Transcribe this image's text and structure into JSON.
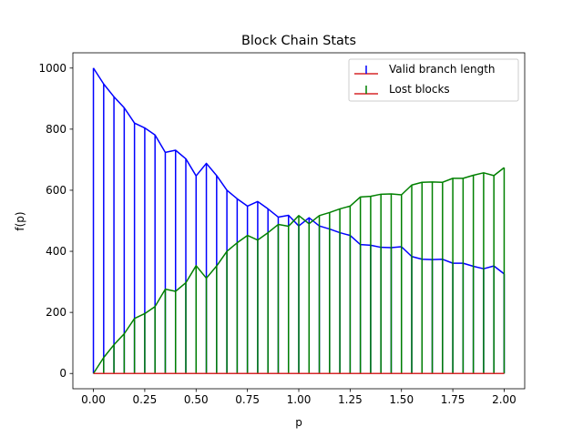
{
  "chart_data": {
    "type": "stem",
    "title": "Block Chain Stats",
    "xlabel": "p",
    "ylabel": "f(p)",
    "xlim": [
      -0.1,
      2.1
    ],
    "ylim": [
      -50,
      1050
    ],
    "xticks": [
      0.0,
      0.25,
      0.5,
      0.75,
      1.0,
      1.25,
      1.5,
      1.75,
      2.0
    ],
    "xtick_labels": [
      "0.00",
      "0.25",
      "0.50",
      "0.75",
      "1.00",
      "1.25",
      "1.50",
      "1.75",
      "2.00"
    ],
    "yticks": [
      0,
      200,
      400,
      600,
      800,
      1000
    ],
    "ytick_labels": [
      "0",
      "200",
      "400",
      "600",
      "800",
      "1000"
    ],
    "grid": false,
    "legend_position": "top-right",
    "baseline_color": "#d62728",
    "x": [
      0.0,
      0.05,
      0.1,
      0.15,
      0.2,
      0.25,
      0.3,
      0.35,
      0.4,
      0.45,
      0.5,
      0.55,
      0.6,
      0.65,
      0.7,
      0.75,
      0.8,
      0.85,
      0.9,
      0.95,
      1.0,
      1.05,
      1.1,
      1.15,
      1.2,
      1.25,
      1.3,
      1.35,
      1.4,
      1.45,
      1.5,
      1.55,
      1.6,
      1.65,
      1.7,
      1.75,
      1.8,
      1.85,
      1.9,
      1.95,
      2.0
    ],
    "series": [
      {
        "name": "Valid branch length",
        "color": "#0000ff",
        "values": [
          1000,
          948,
          906,
          870,
          820,
          804,
          781,
          724,
          731,
          703,
          647,
          688,
          648,
          600,
          572,
          548,
          563,
          539,
          512,
          518,
          483,
          510,
          483,
          473,
          461,
          452,
          422,
          420,
          413,
          412,
          415,
          383,
          374,
          373,
          374,
          361,
          361,
          351,
          343,
          352,
          326
        ]
      },
      {
        "name": "Lost blocks",
        "color": "#008000",
        "values": [
          0,
          52,
          94,
          130,
          180,
          196,
          219,
          276,
          269,
          297,
          353,
          312,
          352,
          400,
          428,
          452,
          437,
          461,
          488,
          482,
          517,
          490,
          517,
          527,
          539,
          548,
          578,
          580,
          587,
          588,
          585,
          617,
          626,
          627,
          626,
          639,
          639,
          649,
          657,
          648,
          674
        ]
      }
    ]
  }
}
